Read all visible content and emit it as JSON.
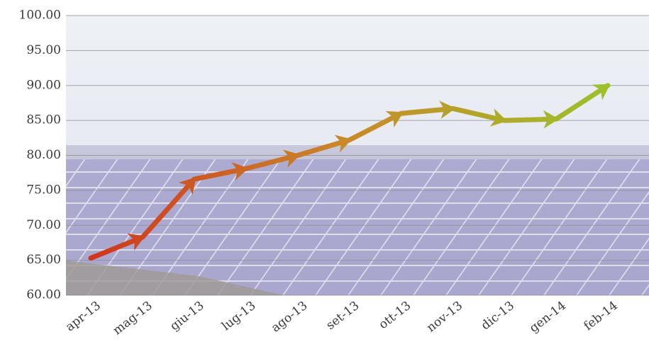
{
  "chart_data": {
    "type": "line",
    "categories": [
      "apr-13",
      "mag-13",
      "giu-13",
      "lug-13",
      "ago-13",
      "set-13",
      "ott-13",
      "nov-13",
      "dic-13",
      "gen-14",
      "feb-14"
    ],
    "values": [
      65.3,
      68.3,
      76.6,
      78.1,
      80.0,
      82.2,
      86.0,
      86.7,
      85.0,
      85.2,
      90.0
    ],
    "colors": [
      "#d0361d",
      "#c98a2a",
      "#9cc12b"
    ],
    "ylim": [
      60,
      100
    ],
    "yticks": [
      {
        "value": 60,
        "label": "60.00"
      },
      {
        "value": 65,
        "label": "65.00"
      },
      {
        "value": 70,
        "label": "70.00"
      },
      {
        "value": 75,
        "label": "75.00"
      },
      {
        "value": 80,
        "label": "80.00"
      },
      {
        "value": 85,
        "label": "85.00"
      },
      {
        "value": 90,
        "label": "90.00"
      },
      {
        "value": 95,
        "label": "95.00"
      },
      {
        "value": 100,
        "label": "100.00"
      }
    ],
    "grid": true
  }
}
